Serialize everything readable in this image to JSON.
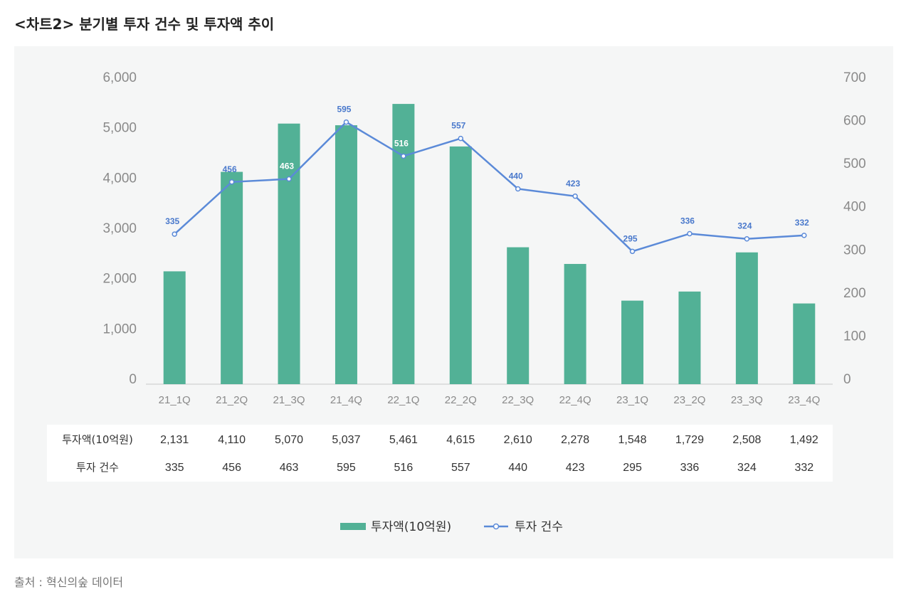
{
  "title": "<차트2>  분기별 투자 건수 및 투자액 추이",
  "source": "출처 : 혁신의숲 데이터",
  "colors": {
    "bar": "#52b196",
    "line": "#5b8ad8",
    "label": "#4a79cc",
    "axis": "#8a8a8a"
  },
  "chart_data": {
    "type": "bar",
    "categories": [
      "21_1Q",
      "21_2Q",
      "21_3Q",
      "21_4Q",
      "22_1Q",
      "22_2Q",
      "22_3Q",
      "22_4Q",
      "23_1Q",
      "23_2Q",
      "23_3Q",
      "23_4Q"
    ],
    "series": [
      {
        "name": "투자액(10억원)",
        "type": "bar",
        "axis": "left",
        "values": [
          2131,
          4110,
          5070,
          5037,
          5461,
          4615,
          2610,
          2278,
          1548,
          1729,
          2508,
          1492
        ],
        "labels": [
          "2,131",
          "4,110",
          "5,070",
          "5,037",
          "5,461",
          "4,615",
          "2,610",
          "2,278",
          "1,548",
          "1,729",
          "2,508",
          "1,492"
        ]
      },
      {
        "name": "투자 건수",
        "type": "line",
        "axis": "right",
        "values": [
          335,
          456,
          463,
          595,
          516,
          557,
          440,
          423,
          295,
          336,
          324,
          332
        ],
        "labels": [
          "335",
          "456",
          "463",
          "595",
          "516",
          "557",
          "440",
          "423",
          "295",
          "336",
          "324",
          "332"
        ]
      }
    ],
    "y_left": {
      "min": 0,
      "max": 6000,
      "ticks": [
        "0",
        "1,000",
        "2,000",
        "3,000",
        "4,000",
        "5,000",
        "6,000"
      ]
    },
    "y_right": {
      "min": 0,
      "max": 700,
      "ticks": [
        "0",
        "100",
        "200",
        "300",
        "400",
        "500",
        "600",
        "700"
      ]
    },
    "grid": false,
    "legend": "bottom",
    "data_table": true
  }
}
